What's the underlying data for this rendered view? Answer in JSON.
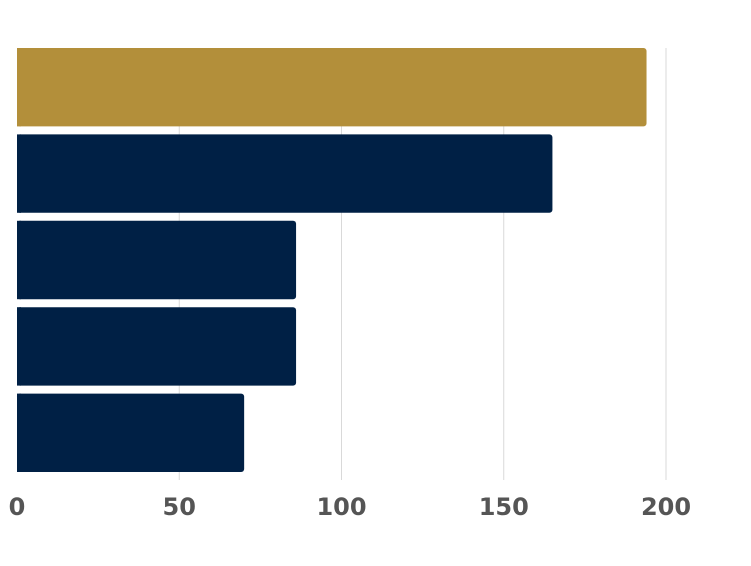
{
  "chart_data": {
    "type": "bar",
    "orientation": "horizontal",
    "title": "",
    "xlabel": "",
    "ylabel": "",
    "categories": [
      "",
      "",
      "",
      "",
      ""
    ],
    "values": [
      194,
      165,
      86,
      86,
      70
    ],
    "highlight_index": 0,
    "xlim": [
      0,
      200
    ],
    "x_ticks": [
      0,
      50,
      100,
      150,
      200
    ],
    "x_tick_labels": [
      "0",
      "50",
      "100",
      "150",
      "200"
    ],
    "grid": "vertical",
    "legend": "none",
    "colors": {
      "highlight": "#b38f3a",
      "bar": "#002045",
      "grid": "#d9d9d9",
      "tick_text": "#555555",
      "background": "#ffffff"
    }
  }
}
